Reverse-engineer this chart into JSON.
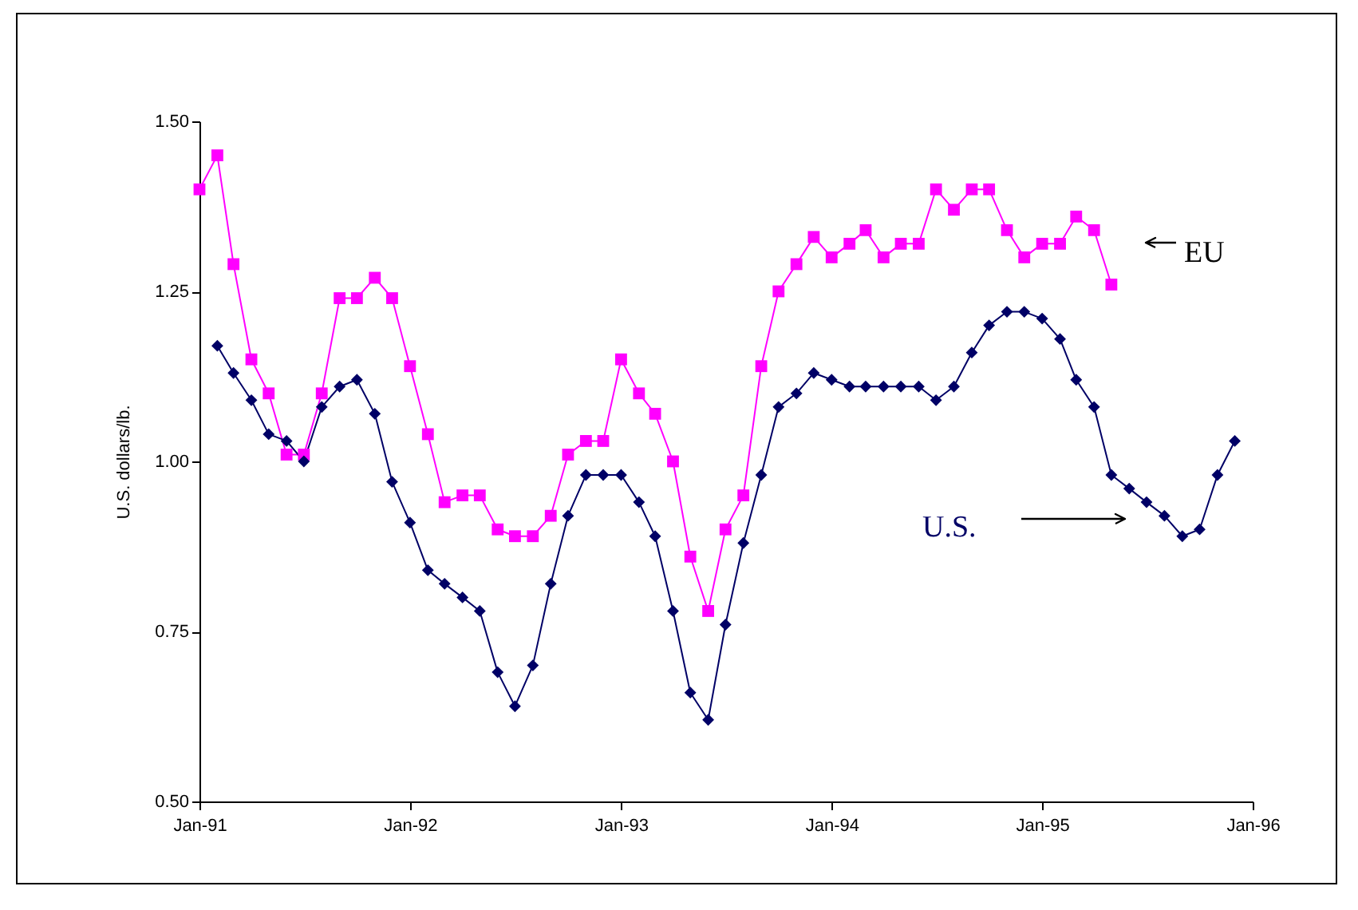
{
  "chart_data": {
    "type": "line",
    "ylabel": "U.S. dollars/lb.",
    "x": [
      "1991-01",
      "1991-02",
      "1991-03",
      "1991-04",
      "1991-05",
      "1991-06",
      "1991-07",
      "1991-08",
      "1991-09",
      "1991-10",
      "1991-11",
      "1991-12",
      "1992-01",
      "1992-02",
      "1992-03",
      "1992-04",
      "1992-05",
      "1992-06",
      "1992-07",
      "1992-08",
      "1992-09",
      "1992-10",
      "1992-11",
      "1992-12",
      "1993-01",
      "1993-02",
      "1993-03",
      "1993-04",
      "1993-05",
      "1993-06",
      "1993-07",
      "1993-08",
      "1993-09",
      "1993-10",
      "1993-11",
      "1993-12",
      "1994-01",
      "1994-02",
      "1994-03",
      "1994-04",
      "1994-05",
      "1994-06",
      "1994-07",
      "1994-08",
      "1994-09",
      "1994-10",
      "1994-11",
      "1994-12",
      "1995-01",
      "1995-02",
      "1995-03",
      "1995-04",
      "1995-05",
      "1995-06",
      "1995-07",
      "1995-08",
      "1995-09",
      "1995-10",
      "1995-11",
      "1995-12"
    ],
    "series": [
      {
        "name": "EU",
        "color": "#ff00ff",
        "marker": "square",
        "values": [
          1.4,
          1.45,
          1.29,
          1.15,
          1.1,
          1.01,
          1.01,
          1.1,
          1.24,
          1.24,
          1.27,
          1.24,
          1.14,
          1.04,
          0.94,
          0.95,
          0.95,
          0.9,
          0.89,
          0.89,
          0.92,
          1.01,
          1.03,
          1.03,
          1.15,
          1.1,
          1.07,
          1.0,
          0.86,
          0.78,
          0.9,
          0.95,
          1.14,
          1.25,
          1.29,
          1.33,
          1.3,
          1.32,
          1.34,
          1.3,
          1.32,
          1.32,
          1.4,
          1.37,
          1.4,
          1.4,
          1.34,
          1.3,
          1.32,
          1.32,
          1.36,
          1.34,
          1.26,
          null,
          null,
          null,
          null,
          null,
          null,
          null
        ]
      },
      {
        "name": "U.S.",
        "color": "#000066",
        "marker": "diamond",
        "values": [
          null,
          1.17,
          1.13,
          1.09,
          1.04,
          1.03,
          1.0,
          1.08,
          1.11,
          1.12,
          1.07,
          0.97,
          0.91,
          0.84,
          0.82,
          0.8,
          0.78,
          0.69,
          0.64,
          0.7,
          0.82,
          0.92,
          0.98,
          0.98,
          0.98,
          0.94,
          0.89,
          0.78,
          0.66,
          0.62,
          0.76,
          0.88,
          0.98,
          1.08,
          1.1,
          1.13,
          1.12,
          1.11,
          1.11,
          1.11,
          1.11,
          1.11,
          1.09,
          1.11,
          1.16,
          1.2,
          1.22,
          1.22,
          1.21,
          1.18,
          1.12,
          1.08,
          0.98,
          0.96,
          0.94,
          0.92,
          0.89,
          0.9,
          0.98,
          1.03
        ]
      }
    ],
    "xlim": [
      "1991-01",
      "1996-01"
    ],
    "xticks": [
      {
        "value": "1991-01",
        "label": "Jan-91"
      },
      {
        "value": "1992-01",
        "label": "Jan-92"
      },
      {
        "value": "1993-01",
        "label": "Jan-93"
      },
      {
        "value": "1994-01",
        "label": "Jan-94"
      },
      {
        "value": "1995-01",
        "label": "Jan-95"
      },
      {
        "value": "1996-01",
        "label": "Jan-96"
      }
    ],
    "ylim": [
      0.5,
      1.5
    ],
    "yticks": [
      {
        "value": 0.5,
        "label": "0.50"
      },
      {
        "value": 0.75,
        "label": "0.75"
      },
      {
        "value": 1.0,
        "label": "1.00"
      },
      {
        "value": 1.25,
        "label": "1.25"
      },
      {
        "value": 1.5,
        "label": "1.50"
      }
    ],
    "grid": false
  }
}
